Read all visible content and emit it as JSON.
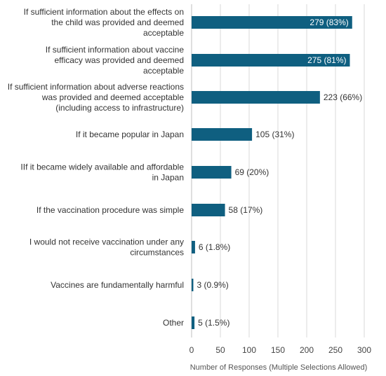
{
  "chart_data": {
    "type": "bar",
    "orientation": "horizontal",
    "categories": [
      [
        "If sufficient information about the effects on",
        "the child was provided and deemed",
        "acceptable"
      ],
      [
        "If sufficient information about vaccine",
        "efficacy was provided and deemed",
        "acceptable"
      ],
      [
        "If sufficient information about adverse reactions",
        "was provided and deemed acceptable",
        "(including access to infrastructure)"
      ],
      [
        "If it became popular in Japan"
      ],
      [
        "IIf it became widely available and affordable",
        "in Japan"
      ],
      [
        "If the vaccination procedure was simple"
      ],
      [
        "I would not receive vaccination under any",
        "circumstances"
      ],
      [
        "Vaccines are fundamentally harmful"
      ],
      [
        "Other"
      ]
    ],
    "values": [
      279,
      275,
      223,
      105,
      69,
      58,
      6,
      3,
      5
    ],
    "data_labels": [
      "279 (83%)",
      "275 (81%)",
      "223 (66%)",
      "105 (31%)",
      "69 (20%)",
      "58 (17%)",
      "6 (1.8%)",
      "3 (0.9%)",
      "5 (1.5%)"
    ],
    "xlim": [
      0,
      300
    ],
    "xticks": [
      0,
      50,
      100,
      150,
      200,
      250,
      300
    ],
    "xlabel": "Number of Responses (Multiple Selections Allowed)",
    "ylabel": "",
    "title": "",
    "grid": true,
    "bar_color": "#0f5f80"
  }
}
